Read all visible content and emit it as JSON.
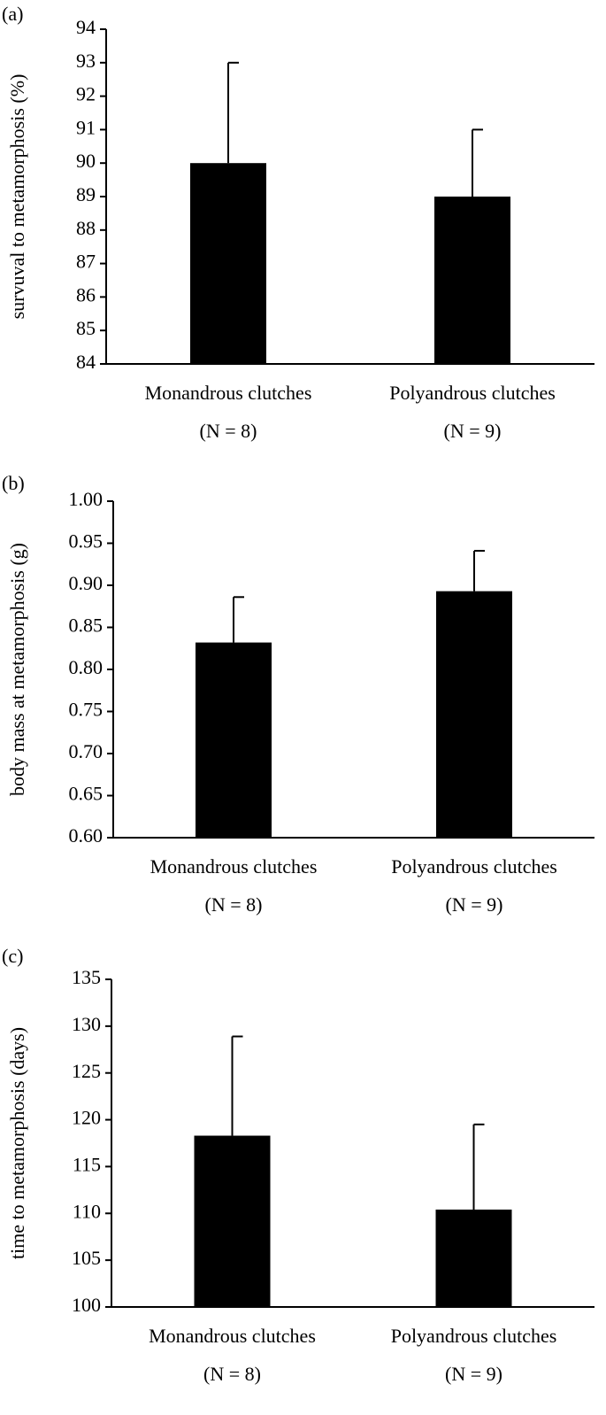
{
  "chart_data": [
    {
      "type": "bar",
      "panel_label": "(a)",
      "ylabel": "survuval to metamorphosis (%)",
      "categories": [
        "Monandrous clutches",
        "Polyandrous clutches"
      ],
      "sample_labels": [
        "(N = 8)",
        "(N = 9)"
      ],
      "values": [
        90,
        89
      ],
      "errors": [
        3,
        2
      ],
      "color": "#000000",
      "ylim": [
        84,
        94
      ],
      "yticks": [
        84,
        85,
        86,
        87,
        88,
        89,
        90,
        91,
        92,
        93,
        94
      ]
    },
    {
      "type": "bar",
      "panel_label": "(b)",
      "ylabel": "body mass at metamorphosis (g)",
      "categories": [
        "Monandrous clutches",
        "Polyandrous clutches"
      ],
      "sample_labels": [
        "(N = 8)",
        "(N = 9)"
      ],
      "values": [
        0.832,
        0.893
      ],
      "errors": [
        0.054,
        0.048
      ],
      "color": "#000000",
      "ylim": [
        0.6,
        1.0
      ],
      "yticks": [
        {
          "value": 0.6,
          "label": "0.60"
        },
        {
          "value": 0.65,
          "label": "0.65"
        },
        {
          "value": 0.7,
          "label": "0.70"
        },
        {
          "value": 0.75,
          "label": "0.75"
        },
        {
          "value": 0.8,
          "label": "0.80"
        },
        {
          "value": 0.85,
          "label": "0.85"
        },
        {
          "value": 0.9,
          "label": "0.90"
        },
        {
          "value": 0.95,
          "label": "0.95"
        },
        {
          "value": 1.0,
          "label": "1.00"
        }
      ]
    },
    {
      "type": "bar",
      "panel_label": "(c)",
      "ylabel": "time to metamorphosis (days)",
      "categories": [
        "Monandrous clutches",
        "Polyandrous clutches"
      ],
      "sample_labels": [
        "(N = 8)",
        "(N = 9)"
      ],
      "values": [
        118.3,
        110.4
      ],
      "errors": [
        10.6,
        9.1
      ],
      "color": "#000000",
      "ylim": [
        100,
        135
      ],
      "yticks": [
        100,
        105,
        110,
        115,
        120,
        125,
        130,
        135
      ]
    }
  ]
}
